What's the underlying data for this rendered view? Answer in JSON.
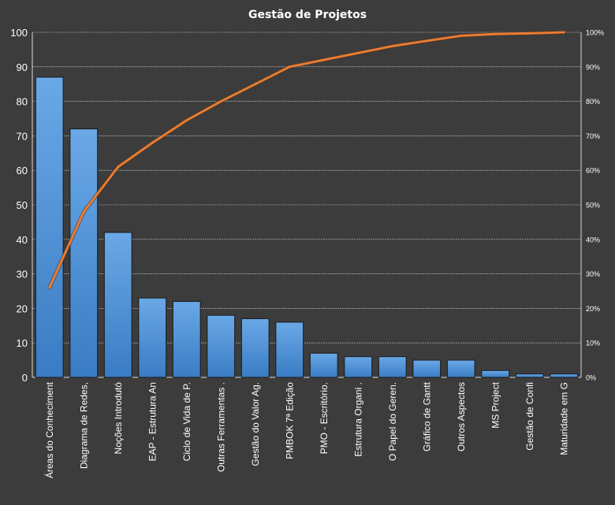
{
  "chart_data": {
    "type": "bar",
    "title": "Gestão de Projetos",
    "categories": [
      "Áreas do Conheciment",
      "Diagrama de Redes,",
      "Noções Introdutó",
      "EAP - Estrutura An",
      "Ciclo de Vida de P.",
      "Outras Ferramentas .",
      "Gestão do Valor Ag.",
      "PMBOK 7ª Edição",
      "PMO - Escritório.",
      "Estrutura Organi .",
      "O Papel do Geren.",
      "Gráfico de Gantt",
      "Outros Aspectos",
      "MS Project",
      "Gestão de Confi",
      "Maturidade em G"
    ],
    "series": [
      {
        "type": "bar",
        "values": [
          87,
          72,
          42,
          23,
          22,
          18,
          17,
          16,
          7,
          6,
          6,
          5,
          5,
          2,
          1,
          1
        ],
        "color": "#4a90d9"
      },
      {
        "type": "line",
        "axis": "right",
        "values": [
          26,
          48,
          61,
          68,
          74.5,
          80,
          85,
          90,
          92,
          94,
          96,
          97.5,
          99,
          99.5,
          99.7,
          100
        ],
        "color": "#ed7d31"
      }
    ],
    "y_left": {
      "min": 0,
      "max": 100,
      "ticks": [
        "0",
        "10",
        "20",
        "30",
        "40",
        "50",
        "60",
        "70",
        "80",
        "90",
        "100"
      ]
    },
    "y_right": {
      "min": 0,
      "max": 100,
      "ticks": [
        "0%",
        "10%",
        "20%",
        "30%",
        "40%",
        "50%",
        "60%",
        "70%",
        "80%",
        "90%",
        "100%"
      ]
    },
    "grid": true,
    "legend": "none"
  }
}
